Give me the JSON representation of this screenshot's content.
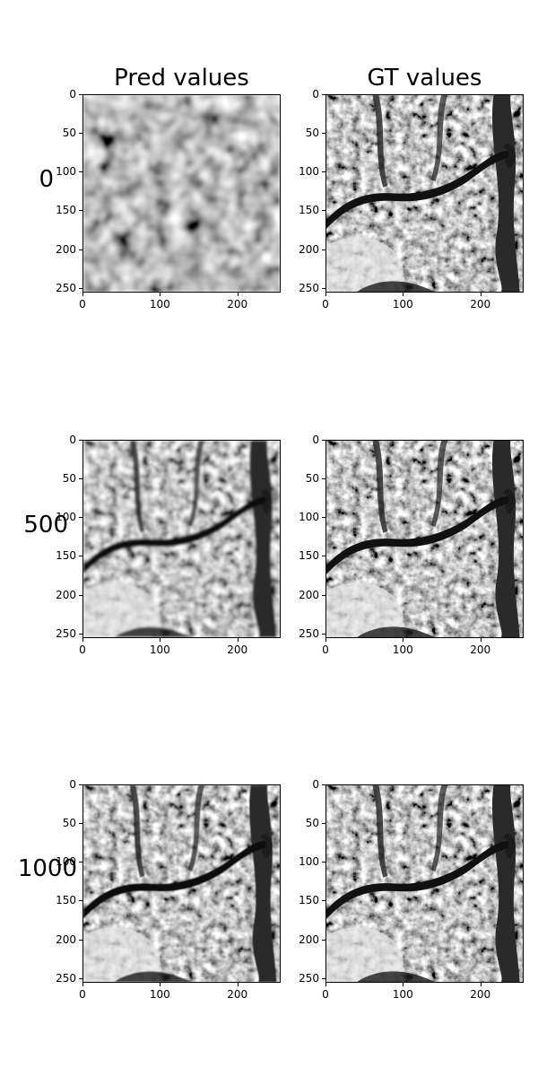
{
  "chart_data": {
    "type": "image-grid",
    "column_titles": [
      "Pred values",
      "GT values"
    ],
    "row_labels": [
      "0",
      "500",
      "1000"
    ],
    "x_ticks": [
      "0",
      "100",
      "200"
    ],
    "y_ticks": [
      "0",
      "50",
      "100",
      "150",
      "200",
      "250"
    ],
    "x_tick_values": [
      0,
      100,
      200
    ],
    "y_tick_values": [
      0,
      50,
      100,
      150,
      200,
      250
    ],
    "xlim": [
      0,
      256
    ],
    "ylim": [
      256,
      0
    ],
    "colormap": "gray",
    "panels": [
      {
        "row": "0",
        "column": "Pred values",
        "content": "blurry-noise"
      },
      {
        "row": "0",
        "column": "GT values",
        "content": "tree-photo"
      },
      {
        "row": "500",
        "column": "Pred values",
        "content": "blurry-tree-photo"
      },
      {
        "row": "500",
        "column": "GT values",
        "content": "tree-photo"
      },
      {
        "row": "1000",
        "column": "Pred values",
        "content": "slightly-blurry-tree-photo"
      },
      {
        "row": "1000",
        "column": "GT values",
        "content": "tree-photo"
      }
    ]
  }
}
